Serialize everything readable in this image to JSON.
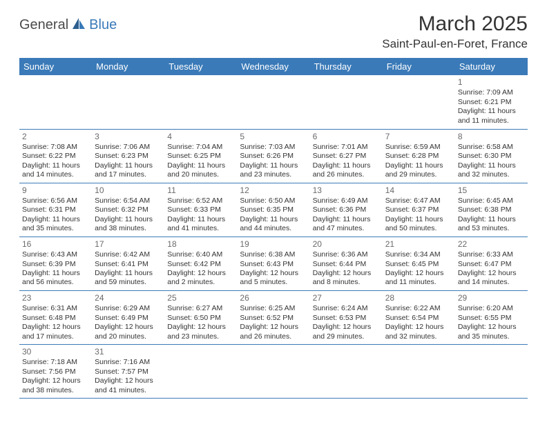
{
  "logo": {
    "part1": "General",
    "part2": "Blue"
  },
  "title": "March 2025",
  "location": "Saint-Paul-en-Foret, France",
  "colors": {
    "header_bg": "#3a7ab8",
    "header_fg": "#ffffff",
    "border": "#3a7ab8",
    "text": "#333333",
    "daynum": "#6a6a6a",
    "logo_gray": "#4a4a4a",
    "logo_blue": "#3a7ab8",
    "background": "#ffffff"
  },
  "fonts": {
    "title_size": 30,
    "location_size": 17,
    "dayheader_size": 13,
    "cell_size": 10.5,
    "daynum_size": 12
  },
  "day_headers": [
    "Sunday",
    "Monday",
    "Tuesday",
    "Wednesday",
    "Thursday",
    "Friday",
    "Saturday"
  ],
  "weeks": [
    [
      null,
      null,
      null,
      null,
      null,
      null,
      {
        "n": "1",
        "sunrise": "Sunrise: 7:09 AM",
        "sunset": "Sunset: 6:21 PM",
        "daylight": "Daylight: 11 hours and 11 minutes."
      }
    ],
    [
      {
        "n": "2",
        "sunrise": "Sunrise: 7:08 AM",
        "sunset": "Sunset: 6:22 PM",
        "daylight": "Daylight: 11 hours and 14 minutes."
      },
      {
        "n": "3",
        "sunrise": "Sunrise: 7:06 AM",
        "sunset": "Sunset: 6:23 PM",
        "daylight": "Daylight: 11 hours and 17 minutes."
      },
      {
        "n": "4",
        "sunrise": "Sunrise: 7:04 AM",
        "sunset": "Sunset: 6:25 PM",
        "daylight": "Daylight: 11 hours and 20 minutes."
      },
      {
        "n": "5",
        "sunrise": "Sunrise: 7:03 AM",
        "sunset": "Sunset: 6:26 PM",
        "daylight": "Daylight: 11 hours and 23 minutes."
      },
      {
        "n": "6",
        "sunrise": "Sunrise: 7:01 AM",
        "sunset": "Sunset: 6:27 PM",
        "daylight": "Daylight: 11 hours and 26 minutes."
      },
      {
        "n": "7",
        "sunrise": "Sunrise: 6:59 AM",
        "sunset": "Sunset: 6:28 PM",
        "daylight": "Daylight: 11 hours and 29 minutes."
      },
      {
        "n": "8",
        "sunrise": "Sunrise: 6:58 AM",
        "sunset": "Sunset: 6:30 PM",
        "daylight": "Daylight: 11 hours and 32 minutes."
      }
    ],
    [
      {
        "n": "9",
        "sunrise": "Sunrise: 6:56 AM",
        "sunset": "Sunset: 6:31 PM",
        "daylight": "Daylight: 11 hours and 35 minutes."
      },
      {
        "n": "10",
        "sunrise": "Sunrise: 6:54 AM",
        "sunset": "Sunset: 6:32 PM",
        "daylight": "Daylight: 11 hours and 38 minutes."
      },
      {
        "n": "11",
        "sunrise": "Sunrise: 6:52 AM",
        "sunset": "Sunset: 6:33 PM",
        "daylight": "Daylight: 11 hours and 41 minutes."
      },
      {
        "n": "12",
        "sunrise": "Sunrise: 6:50 AM",
        "sunset": "Sunset: 6:35 PM",
        "daylight": "Daylight: 11 hours and 44 minutes."
      },
      {
        "n": "13",
        "sunrise": "Sunrise: 6:49 AM",
        "sunset": "Sunset: 6:36 PM",
        "daylight": "Daylight: 11 hours and 47 minutes."
      },
      {
        "n": "14",
        "sunrise": "Sunrise: 6:47 AM",
        "sunset": "Sunset: 6:37 PM",
        "daylight": "Daylight: 11 hours and 50 minutes."
      },
      {
        "n": "15",
        "sunrise": "Sunrise: 6:45 AM",
        "sunset": "Sunset: 6:38 PM",
        "daylight": "Daylight: 11 hours and 53 minutes."
      }
    ],
    [
      {
        "n": "16",
        "sunrise": "Sunrise: 6:43 AM",
        "sunset": "Sunset: 6:39 PM",
        "daylight": "Daylight: 11 hours and 56 minutes."
      },
      {
        "n": "17",
        "sunrise": "Sunrise: 6:42 AM",
        "sunset": "Sunset: 6:41 PM",
        "daylight": "Daylight: 11 hours and 59 minutes."
      },
      {
        "n": "18",
        "sunrise": "Sunrise: 6:40 AM",
        "sunset": "Sunset: 6:42 PM",
        "daylight": "Daylight: 12 hours and 2 minutes."
      },
      {
        "n": "19",
        "sunrise": "Sunrise: 6:38 AM",
        "sunset": "Sunset: 6:43 PM",
        "daylight": "Daylight: 12 hours and 5 minutes."
      },
      {
        "n": "20",
        "sunrise": "Sunrise: 6:36 AM",
        "sunset": "Sunset: 6:44 PM",
        "daylight": "Daylight: 12 hours and 8 minutes."
      },
      {
        "n": "21",
        "sunrise": "Sunrise: 6:34 AM",
        "sunset": "Sunset: 6:45 PM",
        "daylight": "Daylight: 12 hours and 11 minutes."
      },
      {
        "n": "22",
        "sunrise": "Sunrise: 6:33 AM",
        "sunset": "Sunset: 6:47 PM",
        "daylight": "Daylight: 12 hours and 14 minutes."
      }
    ],
    [
      {
        "n": "23",
        "sunrise": "Sunrise: 6:31 AM",
        "sunset": "Sunset: 6:48 PM",
        "daylight": "Daylight: 12 hours and 17 minutes."
      },
      {
        "n": "24",
        "sunrise": "Sunrise: 6:29 AM",
        "sunset": "Sunset: 6:49 PM",
        "daylight": "Daylight: 12 hours and 20 minutes."
      },
      {
        "n": "25",
        "sunrise": "Sunrise: 6:27 AM",
        "sunset": "Sunset: 6:50 PM",
        "daylight": "Daylight: 12 hours and 23 minutes."
      },
      {
        "n": "26",
        "sunrise": "Sunrise: 6:25 AM",
        "sunset": "Sunset: 6:52 PM",
        "daylight": "Daylight: 12 hours and 26 minutes."
      },
      {
        "n": "27",
        "sunrise": "Sunrise: 6:24 AM",
        "sunset": "Sunset: 6:53 PM",
        "daylight": "Daylight: 12 hours and 29 minutes."
      },
      {
        "n": "28",
        "sunrise": "Sunrise: 6:22 AM",
        "sunset": "Sunset: 6:54 PM",
        "daylight": "Daylight: 12 hours and 32 minutes."
      },
      {
        "n": "29",
        "sunrise": "Sunrise: 6:20 AM",
        "sunset": "Sunset: 6:55 PM",
        "daylight": "Daylight: 12 hours and 35 minutes."
      }
    ],
    [
      {
        "n": "30",
        "sunrise": "Sunrise: 7:18 AM",
        "sunset": "Sunset: 7:56 PM",
        "daylight": "Daylight: 12 hours and 38 minutes."
      },
      {
        "n": "31",
        "sunrise": "Sunrise: 7:16 AM",
        "sunset": "Sunset: 7:57 PM",
        "daylight": "Daylight: 12 hours and 41 minutes."
      },
      null,
      null,
      null,
      null,
      null
    ]
  ]
}
